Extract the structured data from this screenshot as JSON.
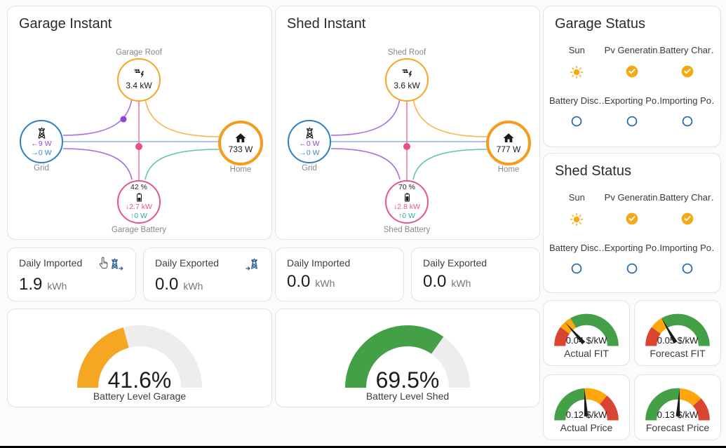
{
  "colors": {
    "card_border": "#e3e3e6",
    "solar": "#f5a623",
    "grid": "#2b7fc4",
    "battery_node": "#e8548c",
    "home": "#f59b1e",
    "line_purple": "#a36fe3",
    "line_blue": "#8ab4e8",
    "line_pink": "#f07ba6",
    "line_orange": "#f6b54d",
    "line_teal": "#67c1b4",
    "dot_purple": "#8e44d8",
    "dot_pink": "#eb4d86",
    "text_purple": "#8a4fd0",
    "text_blue": "#3f86cb",
    "text_pink": "#e8548c",
    "text_teal": "#2ea99c",
    "status_on": "#f5aa13",
    "status_off": "#2265ab",
    "daily_icon": "#235d8f",
    "gauge_track": "#ededed"
  },
  "flow_cards": [
    {
      "title": "Garage Instant",
      "solar_label": "Garage Roof",
      "solar_value": "3.4 kW",
      "grid_label": "Grid",
      "grid_import": "←9 W",
      "grid_export": "→0 W",
      "home_label": "Home",
      "home_value": "733 W",
      "battery_label": "Garage Battery",
      "battery_pct": "42 %",
      "battery_discharge": "↓2.7 kW",
      "battery_charge": "↑0 W"
    },
    {
      "title": "Shed Instant",
      "solar_label": "Shed Roof",
      "solar_value": "3.6 kW",
      "grid_label": "Grid",
      "grid_import": "←0 W",
      "grid_export": "→0 W",
      "home_label": "Home",
      "home_value": "777 W",
      "battery_label": "Shed Battery",
      "battery_pct": "70 %",
      "battery_discharge": "↓2.8 kW",
      "battery_charge": "↑0 W"
    }
  ],
  "status_cards": [
    {
      "title": "Garage Status",
      "items": [
        {
          "label": "Sun",
          "icon": "sun"
        },
        {
          "label": "Pv Generatin…",
          "icon": "check-circle"
        },
        {
          "label": "Battery Char…",
          "icon": "check-circle"
        },
        {
          "label": "Battery Disc…",
          "icon": "circle-outline"
        },
        {
          "label": "Exporting Po…",
          "icon": "circle-outline"
        },
        {
          "label": "Importing Po…",
          "icon": "circle-outline"
        }
      ]
    },
    {
      "title": "Shed Status",
      "items": [
        {
          "label": "Sun",
          "icon": "sun"
        },
        {
          "label": "Pv Generatin…",
          "icon": "check-circle"
        },
        {
          "label": "Battery Char…",
          "icon": "check-circle"
        },
        {
          "label": "Battery Disc…",
          "icon": "circle-outline"
        },
        {
          "label": "Exporting Po…",
          "icon": "circle-outline"
        },
        {
          "label": "Importing Po…",
          "icon": "circle-outline"
        }
      ]
    }
  ],
  "daily_cards": [
    {
      "title": "Daily Imported",
      "value": "1.9",
      "unit": "kWh",
      "icon": "transmission-tower-arrow-out"
    },
    {
      "title": "Daily Exported",
      "value": "0.0",
      "unit": "kWh",
      "icon": "arrow-into-transmission-tower"
    },
    {
      "title": "Daily Imported",
      "value": "0.0",
      "unit": "kWh"
    },
    {
      "title": "Daily Exported",
      "value": "0.0",
      "unit": "kWh"
    }
  ],
  "battery_gauges": [
    {
      "value": 41.6,
      "max": 100,
      "display": "41.6%",
      "label": "Battery Level Garage",
      "color": "#f5a623"
    },
    {
      "value": 69.5,
      "max": 100,
      "display": "69.5%",
      "label": "Battery Level Shed",
      "color": "#43a047"
    }
  ],
  "price_gauges": [
    {
      "display": "0.04 $/kW",
      "label": "Actual FIT",
      "value": 0.04,
      "min": 0,
      "max": 0.15,
      "segments": [
        {
          "from": 0,
          "color": "#da4533"
        },
        {
          "from": 0.03,
          "color": "#ffa60c"
        },
        {
          "from": 0.05,
          "color": "#43a047"
        }
      ]
    },
    {
      "display": "0.05 $/kW",
      "label": "Forecast FIT",
      "value": 0.05,
      "min": 0,
      "max": 0.15,
      "segments": [
        {
          "from": 0,
          "color": "#da4533"
        },
        {
          "from": 0.03,
          "color": "#ffa60c"
        },
        {
          "from": 0.05,
          "color": "#43a047"
        }
      ]
    },
    {
      "display": "0.12 $/kW",
      "label": "Actual Price",
      "value": 0.12,
      "min": 0,
      "max": 0.25,
      "segments": [
        {
          "from": 0,
          "color": "#43a047"
        },
        {
          "from": 0.12,
          "color": "#ffa60c"
        },
        {
          "from": 0.18,
          "color": "#da4533"
        }
      ]
    },
    {
      "display": "0.13 $/kW",
      "label": "Forecast Price",
      "value": 0.13,
      "min": 0,
      "max": 0.25,
      "segments": [
        {
          "from": 0,
          "color": "#43a047"
        },
        {
          "from": 0.13,
          "color": "#ffa60c"
        },
        {
          "from": 0.19,
          "color": "#da4533"
        }
      ]
    }
  ]
}
